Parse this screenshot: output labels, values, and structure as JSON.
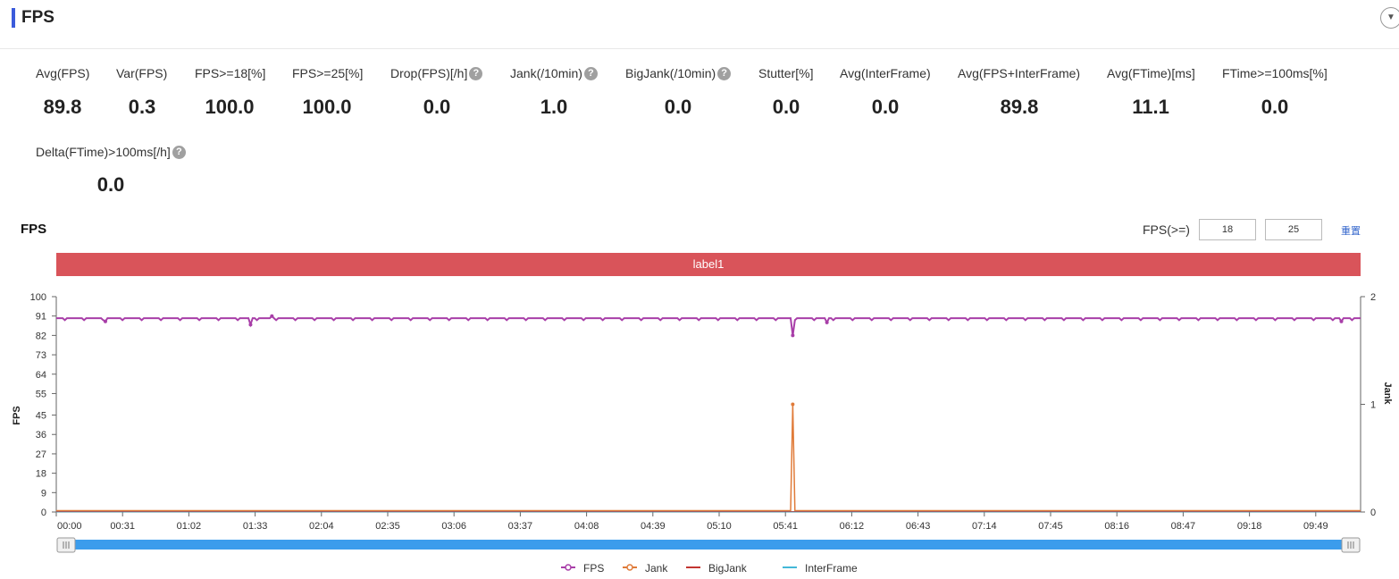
{
  "header": {
    "title": "FPS",
    "toggle_icon": "chevron-down-icon"
  },
  "metrics": [
    {
      "label": "Avg(FPS)",
      "value": "89.8",
      "help": false
    },
    {
      "label": "Var(FPS)",
      "value": "0.3",
      "help": false
    },
    {
      "label": "FPS>=18[%]",
      "value": "100.0",
      "help": false
    },
    {
      "label": "FPS>=25[%]",
      "value": "100.0",
      "help": false
    },
    {
      "label": "Drop(FPS)[/h]",
      "value": "0.0",
      "help": true
    },
    {
      "label": "Jank(/10min)",
      "value": "1.0",
      "help": true
    },
    {
      "label": "BigJank(/10min)",
      "value": "0.0",
      "help": true
    },
    {
      "label": "Stutter[%]",
      "value": "0.0",
      "help": false
    },
    {
      "label": "Avg(InterFrame)",
      "value": "0.0",
      "help": false
    },
    {
      "label": "Avg(FPS+InterFrame)",
      "value": "89.8",
      "help": false
    },
    {
      "label": "Avg(FTime)[ms]",
      "value": "11.1",
      "help": false
    },
    {
      "label": "FTime>=100ms[%]",
      "value": "0.0",
      "help": false
    },
    {
      "label": "Delta(FTime)>100ms[/h]",
      "value": "0.0",
      "help": true
    }
  ],
  "chart_controls": {
    "title": "FPS",
    "threshold_label": "FPS(>=)",
    "threshold_low": "18",
    "threshold_high": "25",
    "reset_label": "重置"
  },
  "chart_data": {
    "type": "line",
    "title": "FPS",
    "band_label": "label1",
    "ylabel": "FPS",
    "ylabel_right": "Jank",
    "ylim": [
      0,
      100
    ],
    "ylim_right": [
      0,
      2
    ],
    "yticks": [
      "0",
      "9",
      "18",
      "27",
      "36",
      "45",
      "55",
      "64",
      "73",
      "82",
      "91",
      "100"
    ],
    "yticks_right": [
      "0",
      "1",
      "2"
    ],
    "x_ticks": [
      "00:00",
      "00:31",
      "01:02",
      "01:33",
      "02:04",
      "02:35",
      "03:06",
      "03:37",
      "04:08",
      "04:39",
      "05:10",
      "05:41",
      "06:12",
      "06:43",
      "07:14",
      "07:45",
      "08:16",
      "08:47",
      "09:18",
      "09:49"
    ],
    "x_range_sec": [
      0,
      611
    ],
    "series": [
      {
        "name": "FPS",
        "axis": "left",
        "color": "#a83ea8",
        "baseline": 90,
        "dips": [
          [
            23,
            88.5
          ],
          [
            91,
            87
          ],
          [
            101,
            91
          ],
          [
            345,
            82
          ],
          [
            361,
            88
          ],
          [
            602,
            88.5
          ]
        ]
      },
      {
        "name": "Jank",
        "axis": "right",
        "color": "#e07b39",
        "baseline": 0,
        "spikes": [
          [
            345,
            1
          ]
        ]
      },
      {
        "name": "BigJank",
        "axis": "right",
        "color": "#c23531",
        "baseline": 0
      },
      {
        "name": "InterFrame",
        "axis": "left",
        "color": "#44b8d8",
        "baseline": 0
      }
    ],
    "legend": [
      "FPS",
      "Jank",
      "BigJank",
      "InterFrame"
    ]
  }
}
